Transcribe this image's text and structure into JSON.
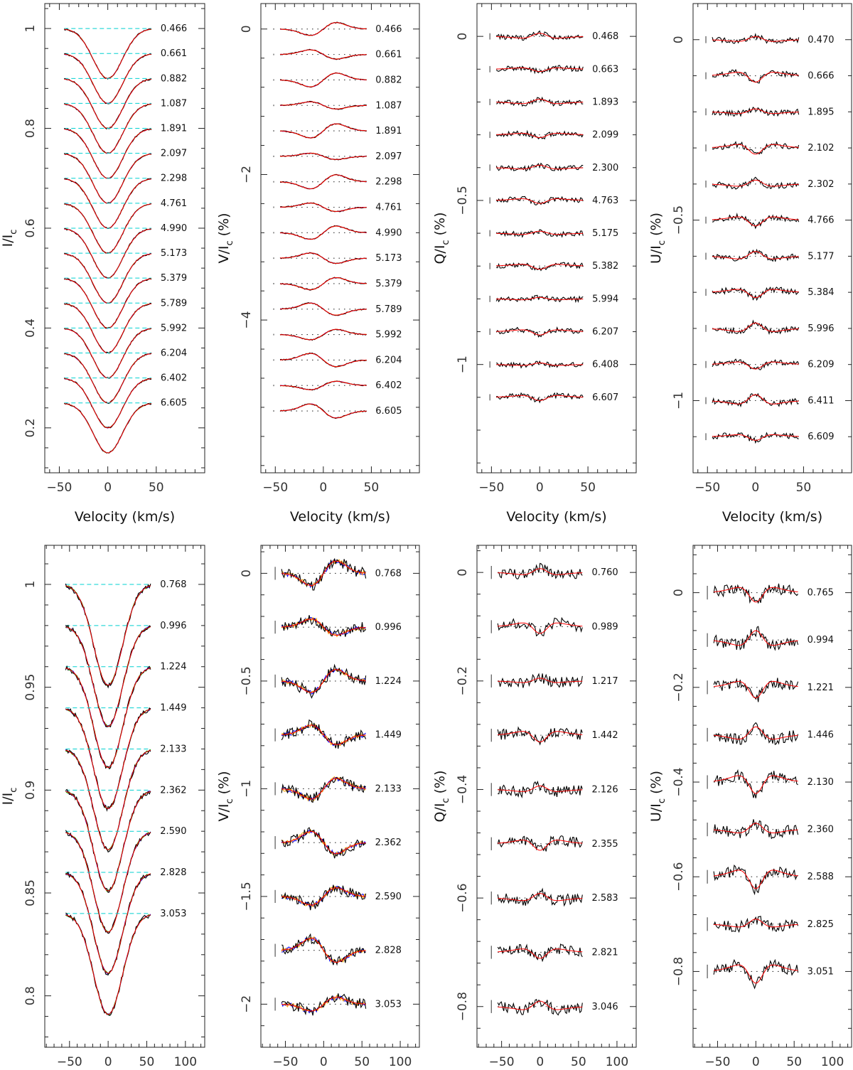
{
  "figure": {
    "xlabel": "Velocity (km/s)",
    "colors": {
      "obs": "#000000",
      "model": "#ff0000",
      "alt1": "#0000ff",
      "alt2": "#00aa00",
      "alt3": "#ffa500",
      "alt4": "#aa00aa",
      "ref": "#00d0d0",
      "dots": "#333333"
    }
  },
  "chart_data": [
    {
      "id": "top-I",
      "type": "line",
      "quantity": "I",
      "ylabel": "I/I",
      "ylabel_sub": "c",
      "unit": "",
      "xlim": [
        -65,
        100
      ],
      "ylim": [
        0.11,
        1.05
      ],
      "xticks": [
        -50,
        0,
        50
      ],
      "xtick_labels": [
        "−50",
        "0",
        "50"
      ],
      "yticks": [
        0.2,
        0.4,
        0.6,
        0.8,
        1
      ],
      "ytick_labels": [
        "0.2",
        "0.4",
        "0.6",
        "0.8",
        "1"
      ],
      "offset_start": 1.0,
      "offset_step": -0.05,
      "depth": 0.1,
      "amp": 0.0,
      "noise": 0.0015,
      "shape": "absorption",
      "velocity_range": [
        -45,
        45
      ],
      "phases": [
        "0.466",
        "0.661",
        "0.882",
        "1.087",
        "1.891",
        "2.097",
        "2.298",
        "4.761",
        "4.990",
        "5.173",
        "5.379",
        "5.789",
        "5.992",
        "6.204",
        "6.402",
        "6.605"
      ]
    },
    {
      "id": "top-V",
      "type": "line",
      "quantity": "V",
      "ylabel": "V/I",
      "ylabel_sub": "c",
      "unit": "(%)",
      "xlim": [
        -65,
        100
      ],
      "ylim": [
        -6.1,
        0.35
      ],
      "xticks": [
        -50,
        0,
        50
      ],
      "xtick_labels": [
        "−50",
        "0",
        "50"
      ],
      "yticks": [
        -4,
        -2,
        0
      ],
      "ytick_labels": [
        "−4",
        "−2",
        "0"
      ],
      "offset_start": 0.0,
      "offset_step": -0.35,
      "depth": 0,
      "amp": 0.1,
      "noise": 0.008,
      "shape": "antisymmetric",
      "velocity_range": [
        -45,
        45
      ],
      "phases": [
        "0.466",
        "0.661",
        "0.882",
        "1.087",
        "1.891",
        "2.097",
        "2.298",
        "4.761",
        "4.990",
        "5.173",
        "5.379",
        "5.789",
        "5.992",
        "6.204",
        "6.402",
        "6.605"
      ]
    },
    {
      "id": "top-Q",
      "type": "line",
      "quantity": "Q",
      "ylabel": "Q/I",
      "ylabel_sub": "c",
      "unit": "(%)",
      "xlim": [
        -65,
        100
      ],
      "ylim": [
        -1.33,
        0.1
      ],
      "xticks": [
        -50,
        0,
        50
      ],
      "xtick_labels": [
        "−50",
        "0",
        "50"
      ],
      "yticks": [
        -1,
        -0.5,
        0
      ],
      "ytick_labels": [
        "−1",
        "−0.5",
        "0"
      ],
      "offset_start": 0.0,
      "offset_step": -0.1,
      "depth": 0,
      "amp": 0.02,
      "noise": 0.008,
      "shape": "symmetric",
      "velocity_range": [
        -45,
        45
      ],
      "phases": [
        "0.468",
        "0.663",
        "1.893",
        "2.099",
        "2.300",
        "4.763",
        "5.175",
        "5.382",
        "5.994",
        "6.207",
        "6.408",
        "6.607"
      ]
    },
    {
      "id": "top-U",
      "type": "line",
      "quantity": "U",
      "ylabel": "U/I",
      "ylabel_sub": "c",
      "unit": "(%)",
      "xlim": [
        -65,
        100
      ],
      "ylim": [
        -1.2,
        0.1
      ],
      "xticks": [
        -50,
        0,
        50
      ],
      "xtick_labels": [
        "−50",
        "0",
        "50"
      ],
      "yticks": [
        -1,
        -0.5,
        0
      ],
      "ytick_labels": [
        "−1",
        "−0.5",
        "0"
      ],
      "offset_start": 0.0,
      "offset_step": -0.1,
      "depth": 0,
      "amp": 0.035,
      "noise": 0.008,
      "shape": "symmetric",
      "velocity_range": [
        -45,
        45
      ],
      "phases": [
        "0.470",
        "0.666",
        "1.895",
        "2.102",
        "2.302",
        "4.766",
        "5.177",
        "5.384",
        "5.996",
        "6.209",
        "6.411",
        "6.609"
      ]
    },
    {
      "id": "bottom-I",
      "type": "line",
      "quantity": "I",
      "ylabel": "I/I",
      "ylabel_sub": "c",
      "unit": "",
      "xlim": [
        -82,
        125
      ],
      "ylim": [
        0.775,
        1.019
      ],
      "xticks": [
        -50,
        0,
        50,
        100
      ],
      "xtick_labels": [
        "−50",
        "0",
        "50",
        "100"
      ],
      "yticks": [
        0.8,
        0.85,
        0.9,
        0.95,
        1
      ],
      "ytick_labels": [
        "0.8",
        "0.85",
        "0.9",
        "0.95",
        "1"
      ],
      "offset_start": 1.0,
      "offset_step": -0.02,
      "depth": 0.049,
      "amp": 0.0,
      "noise": 0.0012,
      "shape": "absorption",
      "velocity_range": [
        -55,
        55
      ],
      "phases": [
        "0.768",
        "0.996",
        "1.224",
        "1.449",
        "2.133",
        "2.362",
        "2.590",
        "2.828",
        "3.053"
      ]
    },
    {
      "id": "bottom-V",
      "type": "line",
      "quantity": "V",
      "ylabel": "V/I",
      "ylabel_sub": "c",
      "unit": "(%)",
      "xlim": [
        -82,
        125
      ],
      "ylim": [
        -2.2,
        0.13
      ],
      "xticks": [
        -50,
        0,
        50,
        100
      ],
      "xtick_labels": [
        "−50",
        "0",
        "50",
        "100"
      ],
      "yticks": [
        -2,
        -1.5,
        -1,
        -0.5,
        0
      ],
      "ytick_labels": [
        "−2",
        "−1.5",
        "−1",
        "−0.5",
        "0"
      ],
      "offset_start": 0.0,
      "offset_step": -0.25,
      "depth": 0,
      "amp": 0.06,
      "noise": 0.025,
      "shape": "antisymmetric",
      "velocity_range": [
        -55,
        55
      ],
      "phases": [
        "0.768",
        "0.996",
        "1.224",
        "1.449",
        "2.133",
        "2.362",
        "2.590",
        "2.828",
        "3.053"
      ]
    },
    {
      "id": "bottom-Q",
      "type": "line",
      "quantity": "Q",
      "ylabel": "Q/I",
      "ylabel_sub": "c",
      "unit": "(%)",
      "xlim": [
        -82,
        125
      ],
      "ylim": [
        -0.875,
        0.05
      ],
      "xticks": [
        -50,
        0,
        50,
        100
      ],
      "xtick_labels": [
        "−50",
        "0",
        "50",
        "100"
      ],
      "yticks": [
        -0.8,
        -0.6,
        -0.4,
        -0.2,
        0
      ],
      "ytick_labels": [
        "−0.8",
        "−0.6",
        "−0.4",
        "−0.2",
        "0"
      ],
      "offset_start": 0.0,
      "offset_step": -0.1,
      "depth": 0,
      "amp": 0.025,
      "noise": 0.01,
      "shape": "symmetric",
      "velocity_range": [
        -55,
        55
      ],
      "phases": [
        "0.760",
        "0.989",
        "1.217",
        "1.442",
        "2.126",
        "2.355",
        "2.583",
        "2.821",
        "3.046"
      ]
    },
    {
      "id": "bottom-U",
      "type": "line",
      "quantity": "U",
      "ylabel": "U/I",
      "ylabel_sub": "c",
      "unit": "(%)",
      "xlim": [
        -82,
        125
      ],
      "ylim": [
        -0.96,
        0.1
      ],
      "xticks": [
        -50,
        0,
        50,
        100
      ],
      "xtick_labels": [
        "−50",
        "0",
        "50",
        "100"
      ],
      "yticks": [
        -0.8,
        -0.6,
        -0.4,
        -0.2,
        0
      ],
      "ytick_labels": [
        "−0.8",
        "−0.6",
        "−0.4",
        "−0.2",
        "0"
      ],
      "offset_start": 0.0,
      "offset_step": -0.1,
      "depth": 0,
      "amp": -0.05,
      "noise": 0.012,
      "shape": "symmetric",
      "velocity_range": [
        -55,
        55
      ],
      "phases": [
        "0.765",
        "0.994",
        "1.221",
        "1.446",
        "2.130",
        "2.360",
        "2.588",
        "2.825",
        "3.051"
      ]
    }
  ]
}
